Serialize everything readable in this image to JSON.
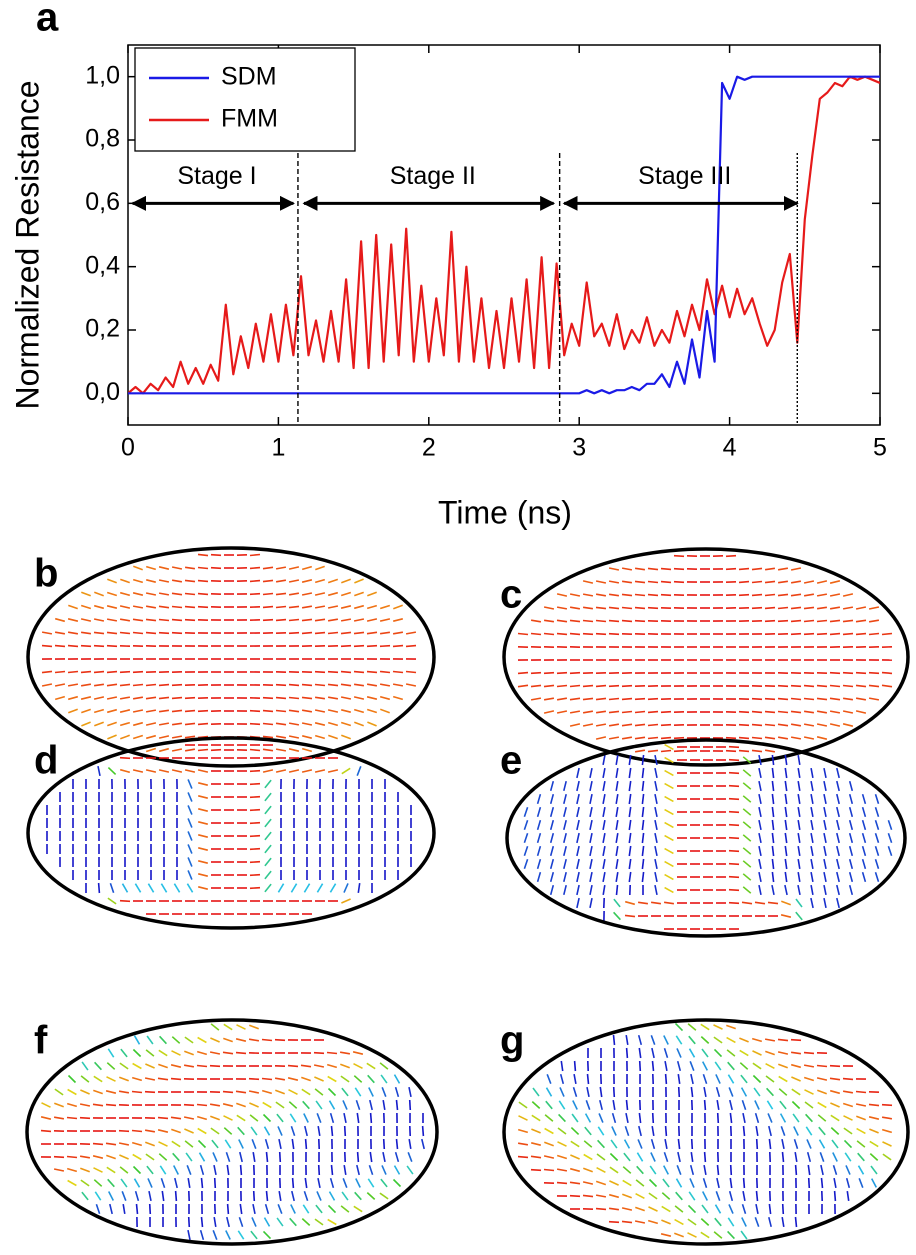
{
  "chart_data": {
    "type": "line",
    "xlabel": "Time (ns)",
    "ylabel": "Normalized Resistance",
    "xlim": [
      0,
      5
    ],
    "xticks": [
      0,
      1,
      2,
      3,
      4,
      5
    ],
    "ylim": [
      -0.1,
      1.1
    ],
    "yticks": [
      {
        "value": 0,
        "label": "0,0"
      },
      {
        "value": 0.2,
        "label": "0,2"
      },
      {
        "value": 0.4,
        "label": "0,4"
      },
      {
        "value": 0.6,
        "label": "0,6"
      },
      {
        "value": 0.8,
        "label": "0,8"
      },
      {
        "value": 1.0,
        "label": "1,0"
      }
    ],
    "legend": "upper left",
    "x": [
      0,
      0.05,
      0.1,
      0.15,
      0.2,
      0.25,
      0.3,
      0.35,
      0.4,
      0.45,
      0.5,
      0.55,
      0.6,
      0.65,
      0.7,
      0.75,
      0.8,
      0.85,
      0.9,
      0.95,
      1,
      1.05,
      1.1,
      1.15,
      1.2,
      1.25,
      1.3,
      1.35,
      1.4,
      1.45,
      1.5,
      1.55,
      1.6,
      1.65,
      1.7,
      1.75,
      1.8,
      1.85,
      1.9,
      1.95,
      2,
      2.05,
      2.1,
      2.15,
      2.2,
      2.25,
      2.3,
      2.35,
      2.4,
      2.45,
      2.5,
      2.55,
      2.6,
      2.65,
      2.7,
      2.75,
      2.8,
      2.85,
      2.9,
      2.95,
      3,
      3.05,
      3.1,
      3.15,
      3.2,
      3.25,
      3.3,
      3.35,
      3.4,
      3.45,
      3.5,
      3.55,
      3.6,
      3.65,
      3.7,
      3.75,
      3.8,
      3.85,
      3.9,
      3.95,
      4,
      4.05,
      4.1,
      4.15,
      4.2,
      4.25,
      4.3,
      4.35,
      4.4,
      4.45,
      4.5,
      4.55,
      4.6,
      4.65,
      4.7,
      4.75,
      4.8,
      4.85,
      4.9,
      4.95,
      5
    ],
    "series": [
      {
        "name": "SDM",
        "color": "#1a1ae6",
        "values": [
          0,
          0,
          0,
          0,
          0,
          0,
          0,
          0,
          0,
          0,
          0,
          0,
          0,
          0,
          0,
          0,
          0,
          0,
          0,
          0,
          0,
          0,
          0,
          0,
          0,
          0,
          0,
          0,
          0,
          0,
          0,
          0,
          0,
          0,
          0,
          0,
          0,
          0,
          0,
          0,
          0,
          0,
          0,
          0,
          0,
          0,
          0,
          0,
          0,
          0,
          0,
          0,
          0,
          0,
          0,
          0,
          0,
          0,
          0,
          0,
          0,
          0.01,
          0,
          0.01,
          0,
          0.01,
          0.01,
          0.02,
          0.01,
          0.03,
          0.03,
          0.06,
          0.02,
          0.1,
          0.03,
          0.17,
          0.05,
          0.26,
          0.1,
          0.98,
          0.93,
          1,
          0.99,
          1,
          1,
          1,
          1,
          1,
          1,
          1,
          1,
          1,
          1,
          1,
          1,
          1,
          1,
          1,
          1,
          1,
          1
        ]
      },
      {
        "name": "FMM",
        "color": "#e61a1a",
        "values": [
          0,
          0.02,
          0,
          0.03,
          0.01,
          0.05,
          0.02,
          0.1,
          0.03,
          0.08,
          0.03,
          0.09,
          0.04,
          0.28,
          0.06,
          0.18,
          0.08,
          0.22,
          0.1,
          0.25,
          0.1,
          0.28,
          0.12,
          0.37,
          0.12,
          0.23,
          0.1,
          0.26,
          0.1,
          0.36,
          0.08,
          0.48,
          0.08,
          0.5,
          0.1,
          0.47,
          0.12,
          0.52,
          0.1,
          0.34,
          0.1,
          0.3,
          0.12,
          0.51,
          0.1,
          0.4,
          0.1,
          0.3,
          0.08,
          0.26,
          0.08,
          0.3,
          0.1,
          0.36,
          0.08,
          0.43,
          0.08,
          0.41,
          0.12,
          0.22,
          0.15,
          0.35,
          0.18,
          0.22,
          0.15,
          0.25,
          0.14,
          0.2,
          0.16,
          0.24,
          0.15,
          0.2,
          0.16,
          0.26,
          0.18,
          0.28,
          0.2,
          0.36,
          0.25,
          0.34,
          0.24,
          0.33,
          0.25,
          0.3,
          0.22,
          0.15,
          0.2,
          0.35,
          0.44,
          0.16,
          0.55,
          0.75,
          0.93,
          0.95,
          0.98,
          0.97,
          1,
          0.99,
          1,
          0.99,
          0.98
        ]
      }
    ],
    "vlines": [
      1.13,
      2.87,
      4.45
    ],
    "stages": [
      {
        "label": "Stage I",
        "from": 0.03,
        "to": 1.1,
        "y": 0.6
      },
      {
        "label": "Stage II",
        "from": 1.17,
        "to": 2.83,
        "y": 0.6
      },
      {
        "label": "Stage III",
        "from": 2.9,
        "to": 4.45,
        "y": 0.6
      }
    ]
  },
  "panels": {
    "a": "a",
    "b": "b",
    "c": "c",
    "d": "d",
    "e": "e",
    "f": "f",
    "g": "g"
  }
}
